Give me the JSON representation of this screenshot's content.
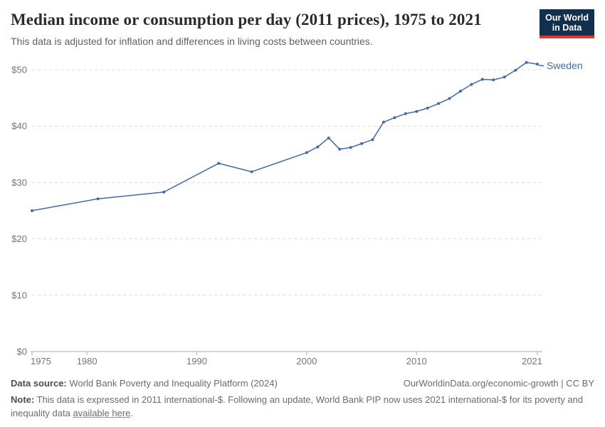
{
  "header": {
    "title": "Median income or consumption per day (2011 prices), 1975 to 2021",
    "subtitle": "This data is adjusted for inflation and differences in living costs between countries.",
    "logo": {
      "line1": "Our World",
      "line2": "in Data"
    }
  },
  "chart_data": {
    "type": "line",
    "title": "Median income or consumption per day (2011 prices), 1975 to 2021",
    "xlabel": "",
    "ylabel": "",
    "xlim": [
      1975,
      2021
    ],
    "ylim": [
      0,
      50
    ],
    "grid": "horizontal-dashed",
    "legend_position": "end-of-line-label",
    "line_color": "#4569a7",
    "axis_color": "#a9a9a9",
    "grid_color": "#dcdcdc",
    "tick_label_color": "#757575",
    "x_ticks": {
      "values": [
        1975,
        1980,
        1990,
        2000,
        2010,
        2021
      ],
      "labels": [
        "1975",
        "1980",
        "1990",
        "2000",
        "2010",
        "2021"
      ]
    },
    "y_ticks": {
      "values": [
        0,
        10,
        20,
        30,
        40,
        50
      ],
      "labels": [
        "$0",
        "$10",
        "$20",
        "$30",
        "$40",
        "$50"
      ]
    },
    "series": [
      {
        "name": "Sweden",
        "x": [
          1975,
          1981,
          1987,
          1992,
          1995,
          2000,
          2001,
          2002,
          2003,
          2004,
          2005,
          2006,
          2007,
          2008,
          2009,
          2010,
          2011,
          2012,
          2013,
          2014,
          2015,
          2016,
          2017,
          2018,
          2019,
          2020,
          2021
        ],
        "values": [
          25.0,
          27.1,
          28.3,
          33.4,
          31.9,
          35.3,
          36.3,
          37.9,
          35.9,
          36.2,
          36.9,
          37.6,
          40.7,
          41.5,
          42.2,
          42.6,
          43.2,
          44.0,
          44.9,
          46.2,
          47.4,
          48.3,
          48.2,
          48.7,
          49.9,
          51.3,
          51.0
        ]
      }
    ]
  },
  "footer": {
    "datasource_label": "Data source:",
    "datasource_text": " World Bank Poverty and Inequality Platform (2024)",
    "attribution": "OurWorldinData.org/economic-growth | CC BY",
    "note_label": "Note:",
    "note_text": " This data is expressed in 2011 international-$. Following an update, World Bank PIP now uses 2021 international-$ for its poverty and inequality data ",
    "note_link": "available here",
    "note_period": "."
  }
}
